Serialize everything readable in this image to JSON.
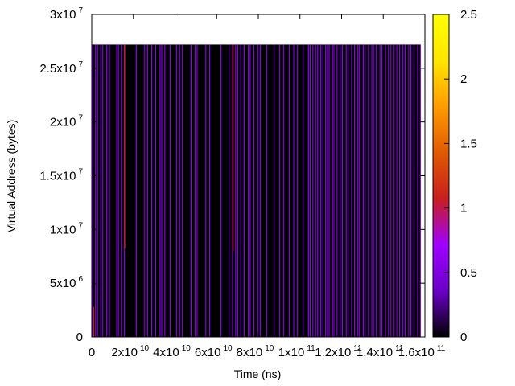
{
  "chart_data": {
    "type": "heatmap",
    "title": "",
    "xlabel": "Time (ns)",
    "ylabel": "Virtual Address (bytes)",
    "xlim": [
      0,
      160000000000
    ],
    "ylim": [
      0,
      30000000
    ],
    "grid": false,
    "x_ticks": [
      {
        "value": 0,
        "mantissa": "0",
        "exp": ""
      },
      {
        "value": 20000000000,
        "mantissa": "2x10",
        "exp": "10"
      },
      {
        "value": 40000000000,
        "mantissa": "4x10",
        "exp": "10"
      },
      {
        "value": 60000000000,
        "mantissa": "6x10",
        "exp": "10"
      },
      {
        "value": 80000000000,
        "mantissa": "8x10",
        "exp": "10"
      },
      {
        "value": 100000000000,
        "mantissa": "1x10",
        "exp": "11"
      },
      {
        "value": 120000000000,
        "mantissa": "1.2x10",
        "exp": "11"
      },
      {
        "value": 140000000000,
        "mantissa": "1.4x10",
        "exp": "11"
      },
      {
        "value": 160000000000,
        "mantissa": "1.6x10",
        "exp": "11"
      }
    ],
    "y_ticks": [
      {
        "value": 0,
        "mantissa": "0",
        "exp": ""
      },
      {
        "value": 5000000,
        "mantissa": "5x10",
        "exp": "6"
      },
      {
        "value": 10000000,
        "mantissa": "1x10",
        "exp": "7"
      },
      {
        "value": 15000000,
        "mantissa": "1.5x10",
        "exp": "7"
      },
      {
        "value": 20000000,
        "mantissa": "2x10",
        "exp": "7"
      },
      {
        "value": 25000000,
        "mantissa": "2.5x10",
        "exp": "7"
      },
      {
        "value": 30000000,
        "mantissa": "3x10",
        "exp": "7"
      }
    ],
    "colorbar": {
      "range": [
        0,
        2.5
      ],
      "ticks": [
        "0",
        "0.5",
        "1",
        "1.5",
        "2",
        "2.5"
      ],
      "palette": [
        "#000000",
        "#6a00c8",
        "#a000ff",
        "#c81e1e",
        "#e05a00",
        "#ff9b00",
        "#ffe600",
        "#ffff00"
      ]
    },
    "background_value": 0,
    "region": {
      "x": [
        0,
        158000000000
      ],
      "y": [
        0,
        27200000
      ],
      "value": 0
    },
    "stripes": {
      "value": 0.6,
      "y": [
        0,
        27200000
      ],
      "x": [
        300000000,
        1600000000,
        2600000000,
        4200000000,
        5100000000,
        7000000000,
        8300000000,
        11800000000,
        12600000000,
        14000000000,
        15400000000,
        21200000000,
        25200000000,
        26600000000,
        28600000000,
        30500000000,
        32600000000,
        33400000000,
        34900000000,
        37500000000,
        40600000000,
        42000000000,
        43200000000,
        47500000000,
        49400000000,
        50400000000,
        54600000000,
        56400000000,
        61800000000,
        65700000000,
        67400000000,
        68900000000,
        69900000000,
        71400000000,
        73000000000,
        75000000000,
        75900000000,
        77700000000,
        79500000000,
        80800000000,
        83900000000,
        87300000000,
        90100000000,
        91900000000,
        94700000000,
        96800000000,
        98600000000,
        101300000000,
        103900000000,
        104700000000,
        106000000000,
        107300000000,
        108300000000,
        109700000000,
        110900000000,
        112100000000,
        113000000000,
        113800000000,
        115400000000,
        116100000000,
        117600000000,
        119000000000,
        120200000000,
        122000000000,
        122900000000,
        124600000000,
        126000000000,
        127600000000,
        128400000000,
        130200000000,
        131100000000,
        132700000000,
        134300000000,
        135100000000,
        136500000000,
        138200000000,
        139100000000,
        140900000000,
        142300000000,
        143500000000,
        145000000000,
        146300000000,
        147600000000,
        149100000000,
        150300000000,
        152000000000,
        153000000000,
        154500000000,
        156300000000,
        157600000000
      ]
    },
    "hot_marks": [
      {
        "x": 15600000000,
        "y": [
          8200000,
          27200000
        ],
        "value": 1.1
      },
      {
        "x": 67700000000,
        "y": [
          8000000,
          27200000
        ],
        "value": 1.1
      },
      {
        "x": 700000000,
        "y": [
          0,
          2800000
        ],
        "value": 1.1
      }
    ]
  }
}
